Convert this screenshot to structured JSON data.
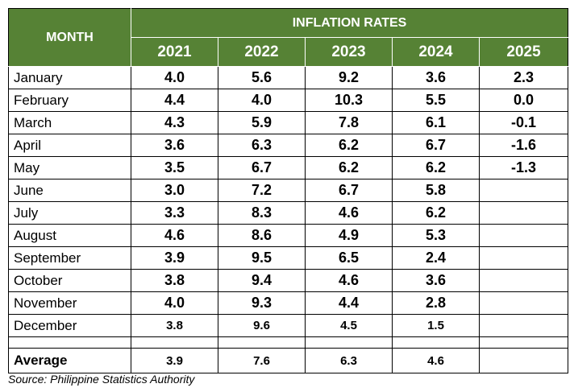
{
  "table": {
    "month_header": "MONTH",
    "group_header": "INFLATION RATES",
    "years": [
      "2021",
      "2022",
      "2023",
      "2024",
      "2025"
    ],
    "rows": [
      {
        "month": "January",
        "values": [
          "4.0",
          "5.6",
          "9.2",
          "3.6",
          "2.3"
        ]
      },
      {
        "month": "February",
        "values": [
          "4.4",
          "4.0",
          "10.3",
          "5.5",
          "0.0"
        ]
      },
      {
        "month": "March",
        "values": [
          "4.3",
          "5.9",
          "7.8",
          "6.1",
          "-0.1"
        ]
      },
      {
        "month": "April",
        "values": [
          "3.6",
          "6.3",
          "6.2",
          "6.7",
          "-1.6"
        ]
      },
      {
        "month": "May",
        "values": [
          "3.5",
          "6.7",
          "6.2",
          "6.2",
          "-1.3"
        ]
      },
      {
        "month": "June",
        "values": [
          "3.0",
          "7.2",
          "6.7",
          "5.8",
          ""
        ]
      },
      {
        "month": "July",
        "values": [
          "3.3",
          "8.3",
          "4.6",
          "6.2",
          ""
        ]
      },
      {
        "month": "August",
        "values": [
          "4.6",
          "8.6",
          "4.9",
          "5.3",
          ""
        ]
      },
      {
        "month": "September",
        "values": [
          "3.9",
          "9.5",
          "6.5",
          "2.4",
          ""
        ]
      },
      {
        "month": "October",
        "values": [
          "3.8",
          "9.4",
          "4.6",
          "3.6",
          ""
        ]
      },
      {
        "month": "November",
        "values": [
          "4.0",
          "9.3",
          "4.4",
          "2.8",
          ""
        ]
      },
      {
        "month": "December",
        "values": [
          "3.8",
          "9.6",
          "4.5",
          "1.5",
          ""
        ]
      }
    ],
    "average": {
      "label": "Average",
      "values": [
        "3.9",
        "7.6",
        "6.3",
        "4.6",
        ""
      ]
    }
  },
  "source": "Source: Philippine Statistics Authority",
  "colors": {
    "header_bg": "#568235",
    "header_text": "#ffffff"
  },
  "chart_data": {
    "type": "table",
    "title": "INFLATION RATES",
    "columns": [
      "MONTH",
      "2021",
      "2022",
      "2023",
      "2024",
      "2025"
    ],
    "rows": [
      [
        "January",
        4.0,
        5.6,
        9.2,
        3.6,
        2.3
      ],
      [
        "February",
        4.4,
        4.0,
        10.3,
        5.5,
        0.0
      ],
      [
        "March",
        4.3,
        5.9,
        7.8,
        6.1,
        -0.1
      ],
      [
        "April",
        3.6,
        6.3,
        6.2,
        6.7,
        -1.6
      ],
      [
        "May",
        3.5,
        6.7,
        6.2,
        6.2,
        -1.3
      ],
      [
        "June",
        3.0,
        7.2,
        6.7,
        5.8,
        null
      ],
      [
        "July",
        3.3,
        8.3,
        4.6,
        6.2,
        null
      ],
      [
        "August",
        4.6,
        8.6,
        4.9,
        5.3,
        null
      ],
      [
        "September",
        3.9,
        9.5,
        6.5,
        2.4,
        null
      ],
      [
        "October",
        3.8,
        9.4,
        4.6,
        3.6,
        null
      ],
      [
        "November",
        4.0,
        9.3,
        4.4,
        2.8,
        null
      ],
      [
        "December",
        3.8,
        9.6,
        4.5,
        1.5,
        null
      ]
    ],
    "average": [
      "Average",
      3.9,
      7.6,
      6.3,
      4.6,
      null
    ]
  }
}
